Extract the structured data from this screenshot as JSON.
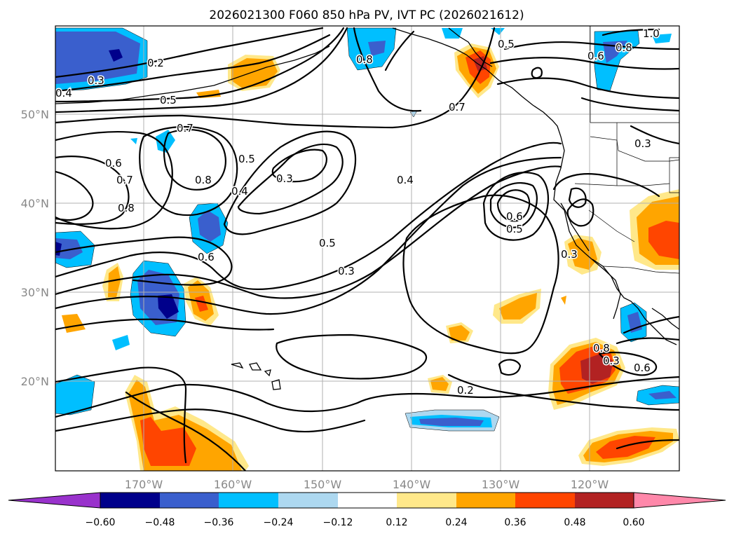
{
  "map": {
    "title": "2026021300 F060 850 hPa PV, IVT PC (2026021612)",
    "lon_labels": [
      "170°W",
      "160°W",
      "150°W",
      "140°W",
      "130°W",
      "120°W"
    ],
    "lat_labels": [
      "50°N",
      "40°N",
      "30°N",
      "20°N"
    ],
    "contour_labels": [
      "0.2",
      "0.3",
      "0.4",
      "0.5",
      "0.8",
      "0.5",
      "0.7",
      "0.6",
      "0.8",
      "1.0",
      "0.7",
      "0.6",
      "0.7",
      "0.8",
      "0.8",
      "0.5",
      "0.3",
      "0.4",
      "0.4",
      "0.6",
      "0.5",
      "0.6",
      "0.5",
      "0.3",
      "0.3",
      "0.3",
      "0.8",
      "0.3",
      "0.6",
      "0.2"
    ],
    "colorbar": {
      "ticks": [
        "−0.60",
        "−0.48",
        "−0.36",
        "−0.24",
        "−0.12",
        "0.12",
        "0.24",
        "0.36",
        "0.48",
        "0.60"
      ],
      "colors": [
        "#9932cc",
        "#00008b",
        "#3a5fcd",
        "#00bfff",
        "#add8f0",
        "#ffffff",
        "#ffe88a",
        "#ffa500",
        "#ff4500",
        "#b22222",
        "#ff88aa"
      ]
    }
  }
}
